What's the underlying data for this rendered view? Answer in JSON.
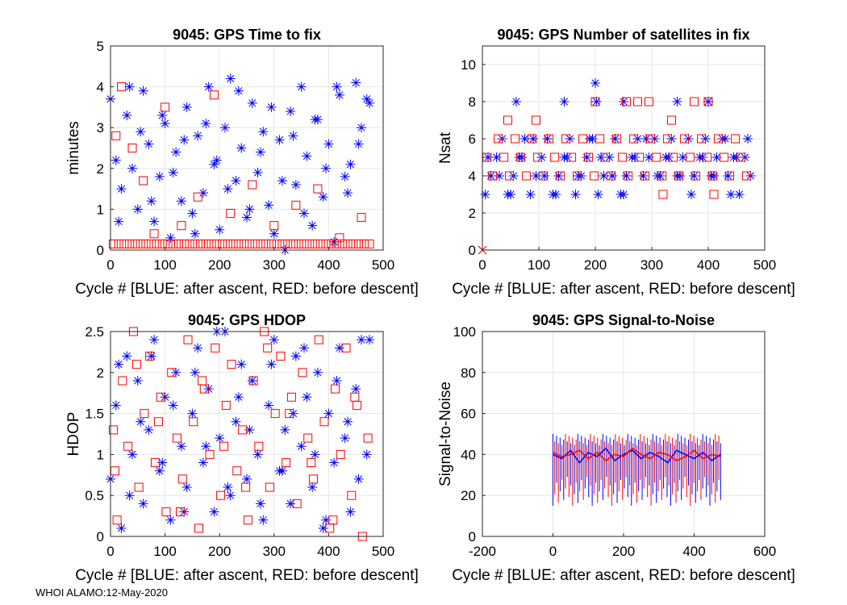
{
  "footer": "WHOI ALAMO:12-May-2020",
  "colors": {
    "blue": "#0000ff",
    "red": "#ff0000",
    "grid": "#e6e6e6",
    "axis": "#262626"
  },
  "chart_data": [
    {
      "type": "scatter",
      "title": "9045: GPS Time to fix",
      "xlabel": "Cycle #  [BLUE: after ascent, RED: before descent]",
      "ylabel": "minutes",
      "xlim": [
        0,
        500
      ],
      "ylim": [
        0,
        5
      ],
      "xticks": [
        0,
        100,
        200,
        300,
        400,
        500
      ],
      "yticks": [
        0,
        1,
        2,
        3,
        4,
        5
      ],
      "xtick_labels": [
        "0",
        "100",
        "200",
        "300",
        "400",
        "500"
      ],
      "ytick_labels": [
        "0",
        "1",
        "2",
        "3",
        "4",
        "5"
      ],
      "series": [
        {
          "name": "after ascent",
          "color": "blue",
          "marker": "star",
          "x": [
            0,
            10,
            20,
            30,
            40,
            50,
            60,
            70,
            80,
            90,
            100,
            110,
            120,
            130,
            140,
            150,
            160,
            170,
            180,
            190,
            200,
            210,
            220,
            230,
            240,
            250,
            260,
            270,
            280,
            290,
            300,
            310,
            320,
            330,
            340,
            350,
            360,
            370,
            380,
            390,
            400,
            410,
            420,
            430,
            440,
            450,
            460,
            470,
            15,
            35,
            55,
            75,
            95,
            115,
            135,
            155,
            175,
            195,
            215,
            235,
            255,
            275,
            295,
            315,
            335,
            355,
            375,
            395,
            415,
            435,
            455,
            475
          ],
          "y": [
            3.7,
            2.2,
            1.5,
            3.3,
            2.0,
            1.0,
            3.9,
            2.6,
            0.7,
            1.8,
            3.1,
            0.3,
            2.4,
            1.2,
            3.5,
            0.9,
            2.8,
            1.4,
            4.0,
            2.1,
            0.5,
            3.0,
            4.2,
            1.7,
            2.5,
            0.8,
            3.6,
            1.9,
            2.9,
            1.1,
            0.4,
            2.7,
            0.0,
            3.4,
            1.6,
            4.0,
            2.3,
            0.6,
            3.2,
            1.3,
            2.6,
            0.2,
            3.8,
            1.8,
            2.1,
            4.1,
            3.0,
            3.7,
            0.7,
            4.0,
            2.9,
            1.2,
            3.3,
            1.9,
            2.7,
            0.4,
            3.1,
            2.2,
            1.5,
            3.9,
            1.0,
            2.4,
            3.5,
            1.7,
            2.8,
            0.9,
            3.2,
            2.0,
            4.0,
            1.4,
            2.6,
            3.6
          ]
        },
        {
          "name": "before descent",
          "color": "red",
          "marker": "square",
          "x": [
            5,
            15,
            25,
            35,
            45,
            55,
            65,
            75,
            85,
            95,
            105,
            115,
            125,
            135,
            145,
            155,
            165,
            175,
            185,
            195,
            205,
            215,
            225,
            235,
            245,
            255,
            265,
            275,
            285,
            295,
            305,
            315,
            325,
            335,
            345,
            355,
            365,
            375,
            385,
            395,
            405,
            415,
            425,
            435,
            445,
            455,
            465,
            475,
            10,
            20,
            40,
            60,
            80,
            100,
            130,
            160,
            190,
            220,
            260,
            300,
            340,
            380,
            420,
            460
          ],
          "y": [
            0.15,
            0.15,
            0.15,
            0.15,
            0.15,
            0.15,
            0.15,
            0.15,
            0.15,
            0.15,
            0.15,
            0.15,
            0.15,
            0.15,
            0.15,
            0.15,
            0.15,
            0.15,
            0.15,
            0.15,
            0.15,
            0.15,
            0.15,
            0.15,
            0.15,
            0.15,
            0.15,
            0.15,
            0.15,
            0.15,
            0.15,
            0.15,
            0.15,
            0.15,
            0.15,
            0.15,
            0.15,
            0.15,
            0.15,
            0.15,
            0.15,
            0.15,
            0.15,
            0.15,
            0.15,
            0.15,
            0.15,
            0.15,
            2.8,
            4.0,
            2.5,
            1.7,
            0.4,
            3.5,
            0.6,
            1.3,
            3.8,
            0.9,
            1.6,
            0.6,
            1.1,
            1.5,
            0.3,
            0.8
          ]
        }
      ]
    },
    {
      "type": "scatter",
      "title": "9045: GPS Number of satellites in fix",
      "xlabel": "Cycle #  [BLUE: after ascent, RED: before descent]",
      "ylabel": "Nsat",
      "xlim": [
        0,
        500
      ],
      "ylim": [
        0,
        11
      ],
      "xticks": [
        0,
        100,
        200,
        300,
        400,
        500
      ],
      "yticks": [
        0,
        2,
        4,
        6,
        8,
        10
      ],
      "xtick_labels": [
        "0",
        "100",
        "200",
        "300",
        "400",
        "500"
      ],
      "ytick_labels": [
        "0",
        "2",
        "4",
        "6",
        "8",
        "10"
      ],
      "series": [
        {
          "name": "after ascent",
          "color": "blue",
          "marker": "star",
          "x": [
            5,
            15,
            25,
            35,
            45,
            55,
            65,
            75,
            85,
            95,
            105,
            115,
            125,
            135,
            145,
            155,
            165,
            175,
            185,
            195,
            205,
            215,
            225,
            235,
            245,
            255,
            265,
            275,
            285,
            295,
            305,
            315,
            325,
            335,
            345,
            355,
            365,
            375,
            385,
            395,
            405,
            415,
            425,
            435,
            445,
            455,
            465,
            475,
            10,
            30,
            50,
            70,
            90,
            110,
            130,
            150,
            170,
            190,
            210,
            230,
            250,
            270,
            290,
            310,
            330,
            350,
            370,
            390,
            410,
            430,
            450,
            470,
            60,
            145,
            200,
            202,
            250,
            345,
            400,
            440
          ],
          "y": [
            3,
            4,
            5,
            6,
            3,
            4,
            5,
            6,
            3,
            4,
            5,
            6,
            3,
            4,
            5,
            6,
            3,
            4,
            5,
            6,
            3,
            4,
            5,
            6,
            3,
            4,
            5,
            6,
            4,
            5,
            6,
            4,
            5,
            6,
            4,
            5,
            6,
            4,
            5,
            6,
            4,
            5,
            6,
            4,
            5,
            3,
            5,
            4,
            5,
            4,
            3,
            5,
            6,
            4,
            3,
            5,
            4,
            6,
            5,
            4,
            3,
            5,
            6,
            4,
            5,
            4,
            3,
            5,
            4,
            6,
            5,
            6,
            8,
            8,
            9,
            8,
            8,
            8,
            8,
            3
          ]
        },
        {
          "name": "before descent",
          "color": "red",
          "marker": "square",
          "x": [
            8,
            18,
            28,
            38,
            48,
            58,
            68,
            78,
            88,
            98,
            108,
            118,
            128,
            138,
            148,
            158,
            168,
            178,
            188,
            198,
            208,
            218,
            228,
            238,
            248,
            258,
            268,
            278,
            288,
            298,
            308,
            318,
            328,
            338,
            348,
            358,
            368,
            378,
            388,
            398,
            408,
            418,
            428,
            438,
            448,
            458,
            468,
            45,
            95,
            200,
            255,
            275,
            295,
            335,
            375,
            400,
            320,
            410
          ],
          "y": [
            5,
            4,
            6,
            5,
            4,
            6,
            5,
            4,
            6,
            5,
            4,
            6,
            5,
            4,
            6,
            5,
            4,
            6,
            5,
            4,
            6,
            5,
            4,
            6,
            5,
            4,
            6,
            5,
            4,
            6,
            5,
            4,
            6,
            5,
            4,
            6,
            5,
            4,
            6,
            5,
            4,
            6,
            5,
            4,
            6,
            5,
            4,
            7,
            7,
            8,
            8,
            8,
            8,
            7,
            8,
            8,
            3,
            3
          ]
        },
        {
          "name": "zero",
          "color": "red",
          "marker": "x",
          "x": [
            0
          ],
          "y": [
            0
          ]
        }
      ]
    },
    {
      "type": "scatter",
      "title": "9045: GPS HDOP",
      "xlabel": "Cycle #  [BLUE: after ascent, RED: before descent]",
      "ylabel": "HDOP",
      "xlim": [
        0,
        500
      ],
      "ylim": [
        0,
        2.5
      ],
      "xticks": [
        0,
        100,
        200,
        300,
        400,
        500
      ],
      "yticks": [
        0,
        0.5,
        1,
        1.5,
        2,
        2.5
      ],
      "xtick_labels": [
        "0",
        "100",
        "200",
        "300",
        "400",
        "500"
      ],
      "ytick_labels": [
        "0",
        "0.5",
        "1",
        "1.5",
        "2",
        "2.5"
      ],
      "series": [
        {
          "name": "after ascent",
          "color": "blue",
          "marker": "star",
          "x": [
            0,
            10,
            20,
            30,
            40,
            50,
            60,
            70,
            80,
            90,
            100,
            110,
            120,
            130,
            140,
            150,
            160,
            170,
            180,
            190,
            200,
            210,
            220,
            230,
            240,
            250,
            260,
            270,
            280,
            290,
            300,
            310,
            320,
            330,
            340,
            350,
            360,
            370,
            380,
            390,
            400,
            410,
            420,
            430,
            440,
            450,
            460,
            470,
            15,
            35,
            55,
            75,
            95,
            115,
            135,
            155,
            175,
            195,
            215,
            235,
            255,
            275,
            295,
            315,
            335,
            355,
            375,
            395,
            415,
            435,
            455,
            475
          ],
          "y": [
            0.7,
            1.6,
            0.1,
            2.2,
            1.0,
            1.9,
            0.4,
            1.3,
            2.4,
            0.8,
            1.7,
            0.2,
            2.0,
            1.1,
            0.6,
            1.5,
            2.3,
            0.9,
            1.8,
            0.3,
            1.2,
            2.5,
            0.5,
            1.4,
            2.1,
            0.7,
            1.9,
            1.0,
            0.2,
            1.6,
            2.4,
            0.8,
            1.3,
            0.4,
            2.2,
            1.1,
            1.7,
            0.6,
            2.0,
            0.1,
            1.5,
            0.9,
            2.3,
            1.2,
            0.3,
            1.8,
            2.4,
            1.0,
            2.1,
            0.5,
            1.4,
            2.2,
            0.9,
            1.6,
            0.3,
            2.0,
            1.1,
            2.5,
            0.6,
            1.7,
            1.3,
            0.4,
            2.1,
            0.8,
            1.5,
            2.3,
            1.0,
            0.2,
            1.9,
            1.4,
            0.7,
            2.4
          ]
        },
        {
          "name": "before descent",
          "color": "red",
          "marker": "square",
          "x": [
            5,
            12,
            22,
            32,
            42,
            52,
            62,
            72,
            82,
            92,
            102,
            112,
            122,
            132,
            142,
            152,
            162,
            172,
            182,
            192,
            202,
            212,
            222,
            232,
            242,
            252,
            262,
            272,
            282,
            292,
            302,
            312,
            322,
            332,
            342,
            352,
            362,
            372,
            382,
            392,
            402,
            412,
            422,
            432,
            442,
            452,
            462,
            472,
            8,
            48,
            88,
            128,
            168,
            208,
            248,
            288,
            328,
            368,
            408,
            448
          ],
          "y": [
            1.3,
            0.2,
            1.9,
            1.1,
            2.5,
            0.6,
            1.5,
            2.2,
            0.9,
            1.7,
            0.3,
            2.0,
            1.2,
            0.7,
            2.4,
            1.4,
            0.1,
            1.8,
            1.0,
            2.3,
            0.5,
            1.6,
            2.1,
            0.8,
            1.3,
            0.2,
            1.9,
            1.1,
            2.5,
            0.6,
            1.5,
            2.2,
            0.9,
            1.7,
            0.4,
            2.0,
            1.2,
            0.7,
            2.4,
            1.4,
            0.1,
            1.8,
            1.0,
            2.3,
            0.5,
            1.6,
            0.0,
            1.2,
            0.8,
            2.1,
            1.4,
            0.3,
            1.9,
            1.1,
            0.6,
            2.3,
            1.5,
            0.9,
            0.2,
            1.7
          ]
        }
      ]
    },
    {
      "type": "line",
      "title": "9045: GPS Signal-to-Noise",
      "xlabel": "Cycle #  [BLUE: after ascent, RED: before descent]",
      "ylabel": "Signal-to-Noise",
      "xlim": [
        -200,
        600
      ],
      "ylim": [
        0,
        100
      ],
      "xticks": [
        -200,
        0,
        200,
        400,
        600
      ],
      "yticks": [
        0,
        20,
        40,
        60,
        80,
        100
      ],
      "xtick_labels": [
        "-200",
        "0",
        "200",
        "400",
        "600"
      ],
      "ytick_labels": [
        "0",
        "20",
        "40",
        "60",
        "80",
        "100"
      ],
      "band": {
        "x_start": 0,
        "x_end": 475,
        "min": 15,
        "max": 50,
        "center": 40
      },
      "series": [
        {
          "name": "after ascent",
          "color": "blue",
          "x": [
            0,
            25,
            50,
            75,
            100,
            125,
            150,
            175,
            200,
            225,
            250,
            275,
            300,
            325,
            350,
            375,
            400,
            425,
            450,
            475
          ],
          "y": [
            40,
            38,
            42,
            36,
            41,
            39,
            43,
            37,
            40,
            42,
            38,
            41,
            39,
            36,
            42,
            40,
            38,
            41,
            37,
            40
          ]
        },
        {
          "name": "before descent",
          "color": "red",
          "x": [
            0,
            25,
            50,
            75,
            100,
            125,
            150,
            175,
            200,
            225,
            250,
            275,
            300,
            325,
            350,
            375,
            400,
            425,
            450,
            475
          ],
          "y": [
            41,
            39,
            40,
            42,
            38,
            41,
            37,
            40,
            39,
            43,
            40,
            38,
            41,
            40,
            37,
            39,
            42,
            38,
            40,
            39
          ]
        }
      ]
    }
  ]
}
